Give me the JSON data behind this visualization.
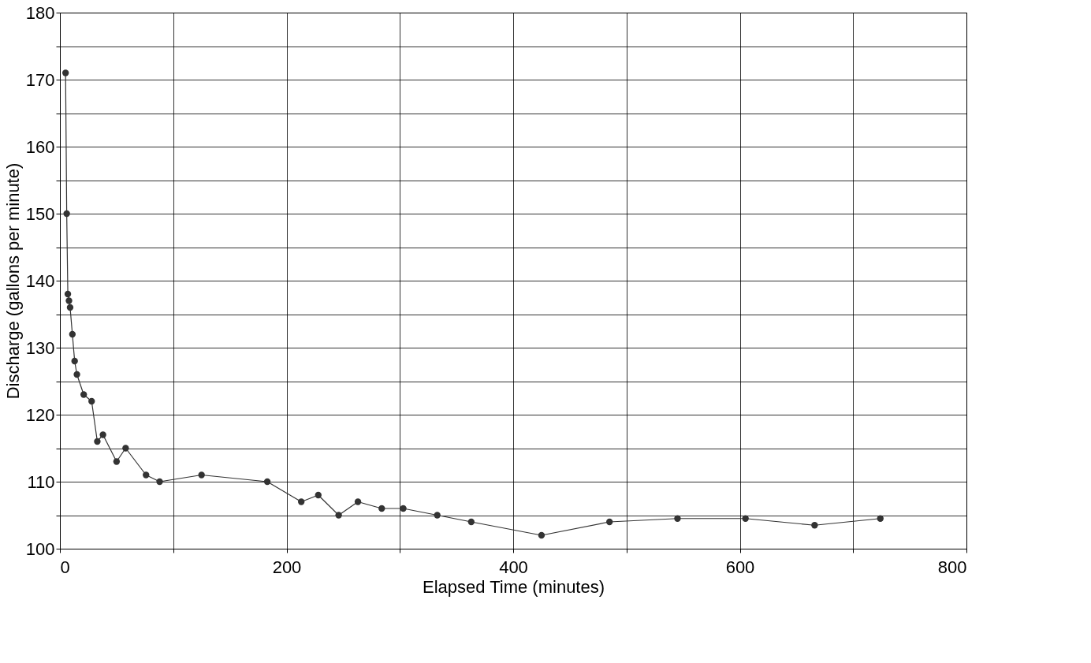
{
  "chart_data": {
    "type": "line",
    "xlabel": "Elapsed Time (minutes)",
    "ylabel": "Discharge (gallons per minute)",
    "x": [
      5,
      6,
      7,
      8,
      9,
      11,
      13,
      15,
      21,
      28,
      33,
      38,
      50,
      58,
      76,
      88,
      125,
      183,
      213,
      228,
      246,
      263,
      284,
      303,
      333,
      363,
      425,
      485,
      545,
      605,
      666,
      724
    ],
    "series": [
      {
        "color": "#333333",
        "values": [
          171,
          150,
          138,
          137,
          136,
          132,
          128,
          126,
          123,
          122,
          116,
          117,
          113,
          115,
          111,
          110,
          111,
          110,
          107,
          108,
          105,
          107,
          106,
          106,
          105,
          104,
          102,
          104,
          104.5,
          104.5,
          103.5,
          104.5
        ]
      }
    ],
    "xlim": [
      0,
      800
    ],
    "xticks": [
      0,
      {
        "value": 100,
        "label": null
      },
      200,
      {
        "value": 300,
        "label": null
      },
      400,
      {
        "value": 500,
        "label": null
      },
      600,
      {
        "value": 700,
        "label": null
      },
      800
    ],
    "ylim": [
      100,
      180
    ],
    "yticks": [
      100,
      {
        "value": 105,
        "label": null
      },
      110,
      {
        "value": 115,
        "label": null
      },
      120,
      {
        "value": 125,
        "label": null
      },
      130,
      {
        "value": 135,
        "label": null
      },
      140,
      {
        "value": 145,
        "label": null
      },
      150,
      {
        "value": 155,
        "label": null
      },
      160,
      {
        "value": 165,
        "label": null
      },
      170,
      {
        "value": 175,
        "label": null
      },
      180
    ],
    "grid": true,
    "marker": "circle",
    "line_style": "solid"
  }
}
